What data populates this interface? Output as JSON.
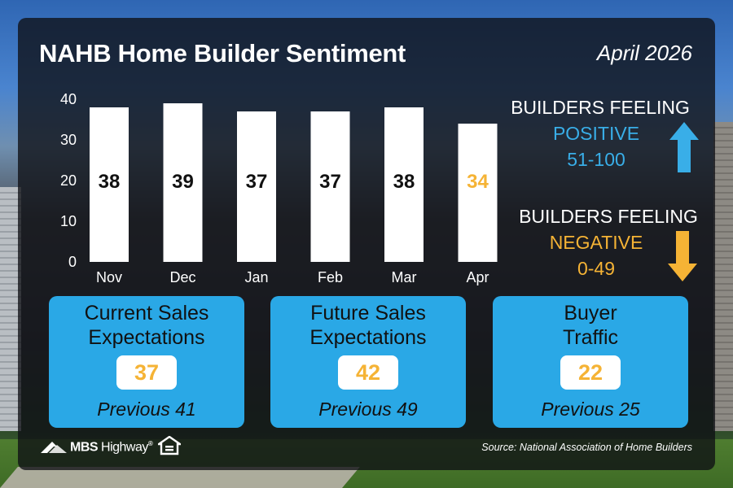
{
  "header": {
    "title": "NAHB Home Builder Sentiment",
    "date": "April 2026"
  },
  "chart_data": {
    "type": "bar",
    "categories": [
      "Nov",
      "Dec",
      "Jan",
      "Feb",
      "Mar",
      "Apr"
    ],
    "values": [
      38,
      39,
      37,
      37,
      38,
      34
    ],
    "ylim": [
      0,
      40
    ],
    "yticks": [
      0,
      10,
      20,
      30,
      40
    ],
    "grid": false,
    "title": "",
    "xlabel": "",
    "ylabel": "",
    "bar_color": "#ffffff",
    "label_color": "#111111",
    "highlight_label_color": "#f5b335",
    "highlight_index": 5
  },
  "legend": {
    "positive_line1": "BUILDERS FEELING",
    "positive_line2": "POSITIVE",
    "positive_range": "51-100",
    "negative_line1": "BUILDERS FEELING",
    "negative_line2": "NEGATIVE",
    "negative_range": "0-49",
    "positive_color": "#39aee8",
    "negative_color": "#f5b335",
    "positive_icon": "arrow-up-icon",
    "negative_icon": "arrow-down-icon"
  },
  "cards": [
    {
      "title_line1": "Current Sales",
      "title_line2": "Expectations",
      "value": "37",
      "previous": "Previous 41"
    },
    {
      "title_line1": "Future Sales",
      "title_line2": "Expectations",
      "value": "42",
      "previous": "Previous 49"
    },
    {
      "title_line1": "Buyer",
      "title_line2": "Traffic",
      "value": "22",
      "previous": "Previous 25"
    }
  ],
  "footer": {
    "logo_bold": "MBS",
    "logo_light": " Highway",
    "logo_mark": "®",
    "source": "Source: National Association of Home Builders",
    "eho_icon": "equal-housing-opportunity-icon"
  },
  "colors": {
    "accent_blue": "#2aa8e6",
    "accent_yellow": "#f5b335"
  }
}
